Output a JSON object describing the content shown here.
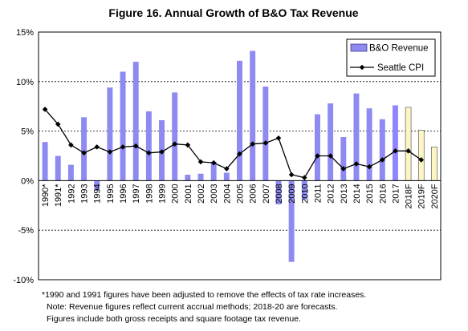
{
  "chart_data": {
    "type": "bar",
    "title": "Figure 16. Annual Growth of B&O Tax Revenue",
    "categories": [
      "1990*",
      "1991*",
      "1992",
      "1993",
      "1994",
      "1995",
      "1996",
      "1997",
      "1998",
      "1999",
      "2000",
      "2001",
      "2002",
      "2003",
      "2004",
      "2005",
      "2006",
      "2007",
      "2008",
      "2009",
      "2010",
      "2011",
      "2012",
      "2013",
      "2014",
      "2015",
      "2016",
      "2017",
      "2018F",
      "2019F",
      "2020F"
    ],
    "series": [
      {
        "name": "B&O Revenue",
        "type": "bar",
        "values": [
          3.9,
          2.5,
          1.6,
          6.4,
          -1.0,
          9.4,
          11.0,
          12.0,
          7.0,
          6.1,
          8.9,
          0.6,
          0.7,
          1.9,
          0.8,
          12.1,
          13.1,
          9.5,
          -2.4,
          -8.2,
          -1.9,
          6.7,
          7.8,
          4.4,
          8.8,
          7.3,
          6.2,
          7.6,
          7.4,
          5.1,
          3.4
        ],
        "colors": {
          "actual": "#8e8af2",
          "latest": "#8f86ff",
          "forecast": "#fbf6c4"
        },
        "forecast_from_index": 28
      },
      {
        "name": "Seattle CPI",
        "type": "line",
        "color": "#000000",
        "values": [
          7.2,
          5.7,
          3.6,
          2.8,
          3.4,
          2.9,
          3.4,
          3.5,
          2.8,
          2.9,
          3.7,
          3.6,
          1.9,
          1.8,
          1.2,
          2.7,
          3.7,
          3.8,
          4.3,
          0.6,
          0.3,
          2.5,
          2.5,
          1.2,
          1.7,
          1.4,
          2.1,
          3.0,
          3.0,
          2.1,
          null
        ]
      }
    ],
    "ylim": [
      -10,
      15
    ],
    "yticks": [
      -10,
      -5,
      0,
      5,
      10,
      15
    ],
    "ytick_labels": [
      "-10%",
      "-5%",
      "0%",
      "5%",
      "10%",
      "15%"
    ],
    "grid": "horizontal dashed at -5%, 5%, 10%",
    "legend": "top-right",
    "xlabel": "",
    "ylabel": ""
  },
  "footnotes": {
    "line1": "*1990 and 1991 figures have been adjusted to remove the effects of tax rate increases.",
    "line2": "Note:  Revenue figures reflect current accrual methods;  2018-20 are forecasts.",
    "line3": "Figures include both gross receipts and square footage tax revenue."
  }
}
